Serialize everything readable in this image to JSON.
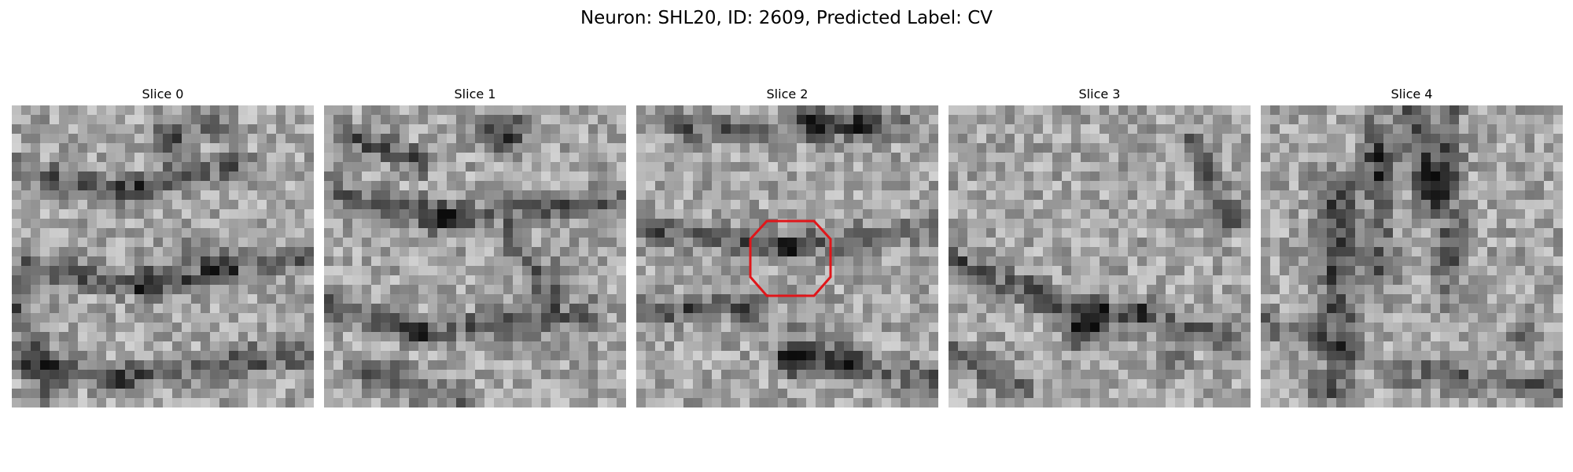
{
  "figure": {
    "title": "Neuron: SHL20, ID: 2609, Predicted Label: CV"
  },
  "panels": [
    {
      "title": "Slice 0",
      "has_outline": false
    },
    {
      "title": "Slice 1",
      "has_outline": false
    },
    {
      "title": "Slice 2",
      "has_outline": true
    },
    {
      "title": "Slice 3",
      "has_outline": false
    },
    {
      "title": "Slice 4",
      "has_outline": false
    }
  ],
  "colors": {
    "outline": "#e0161a",
    "background": "#ffffff",
    "colormap": "gray"
  }
}
